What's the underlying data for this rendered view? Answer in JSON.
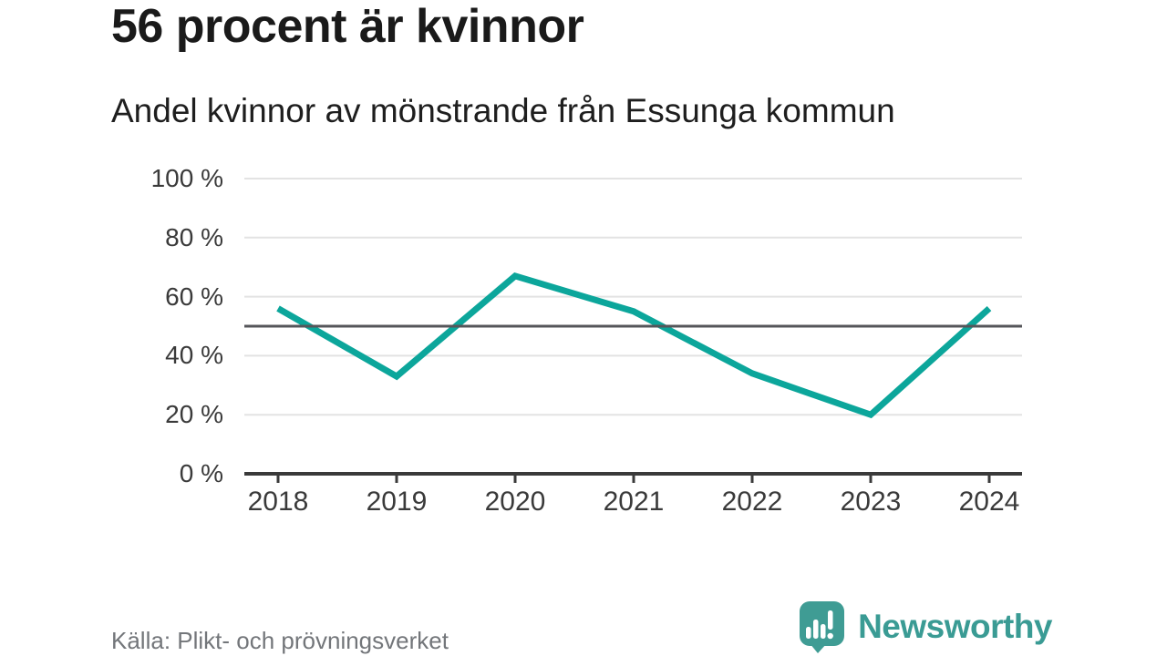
{
  "header": {
    "title": "56 procent är kvinnor",
    "subtitle": "Andel kvinnor av mönstrande från Essunga kommun"
  },
  "chart_data": {
    "type": "line",
    "title": "56 procent är kvinnor",
    "subtitle": "Andel kvinnor av mönstrande från Essunga kommun",
    "categories": [
      "2018",
      "2019",
      "2020",
      "2021",
      "2022",
      "2023",
      "2024"
    ],
    "series": [
      {
        "name": "Andel kvinnor av mönstrande",
        "values": [
          56,
          33,
          67,
          55,
          34,
          20,
          56
        ]
      }
    ],
    "xlabel": "",
    "ylabel": "",
    "ylim": [
      0,
      100
    ],
    "y_ticks": [
      {
        "value": 0,
        "label": "0 %"
      },
      {
        "value": 20,
        "label": "20 %"
      },
      {
        "value": 40,
        "label": "40 %"
      },
      {
        "value": 60,
        "label": "60 %"
      },
      {
        "value": 80,
        "label": "80 %"
      },
      {
        "value": 100,
        "label": "100 %"
      }
    ],
    "reference_line": {
      "value": 50
    },
    "grid": true,
    "legend": "none",
    "colors": {
      "series": "#0ca69b",
      "gridline": "#e3e3e3",
      "reference_line": "#55565a",
      "axis": "#3a3a3a",
      "tick_label": "#3a3a3a"
    }
  },
  "footer": {
    "source": "Källa: Plikt- och prövningsverket",
    "brand": "Newsworthy",
    "brand_color": "#3a9b94",
    "logo_icon": "speech-bubble-bar-chart-icon"
  }
}
